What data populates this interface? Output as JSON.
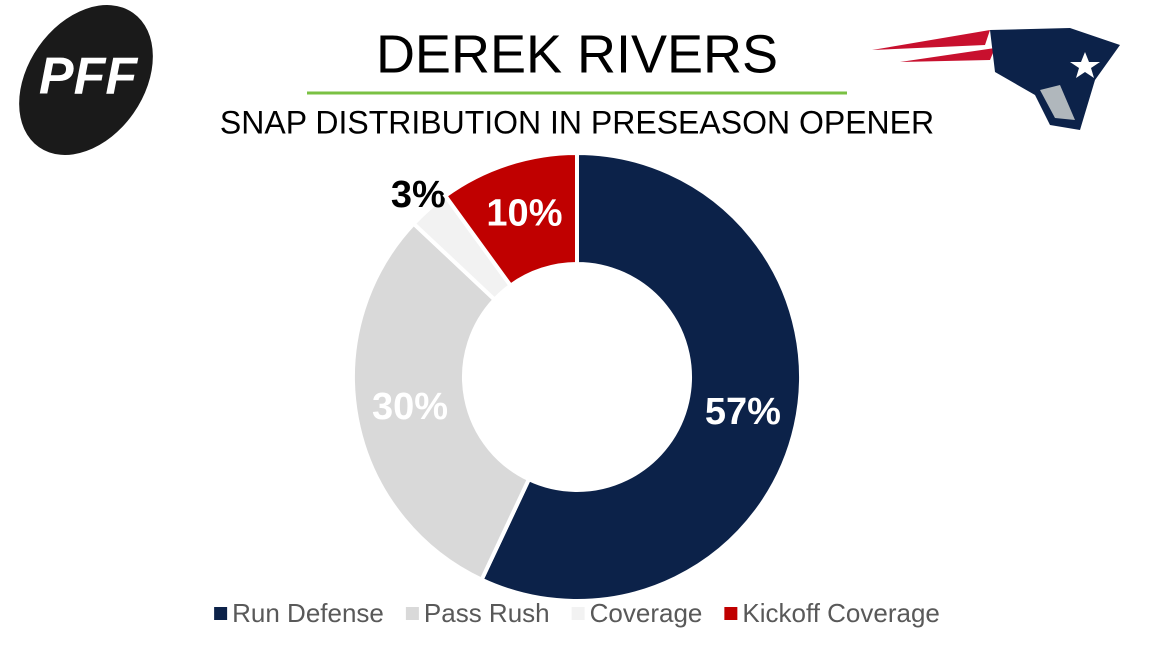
{
  "logo": "PFF",
  "chart_data": {
    "type": "donut",
    "title": "DEREK RIVERS",
    "subtitle": "SNAP DISTRIBUTION IN PRESEASON OPENER",
    "categories": [
      "Run Defense",
      "Pass Rush",
      "Coverage",
      "Kickoff Coverage"
    ],
    "values": [
      57,
      30,
      3,
      10
    ],
    "value_labels": [
      "57%",
      "30%",
      "3%",
      "10%"
    ],
    "colors": [
      "#0c2249",
      "#d9d9d9",
      "#f2f2f2",
      "#c00000"
    ],
    "legend": "bottom"
  }
}
